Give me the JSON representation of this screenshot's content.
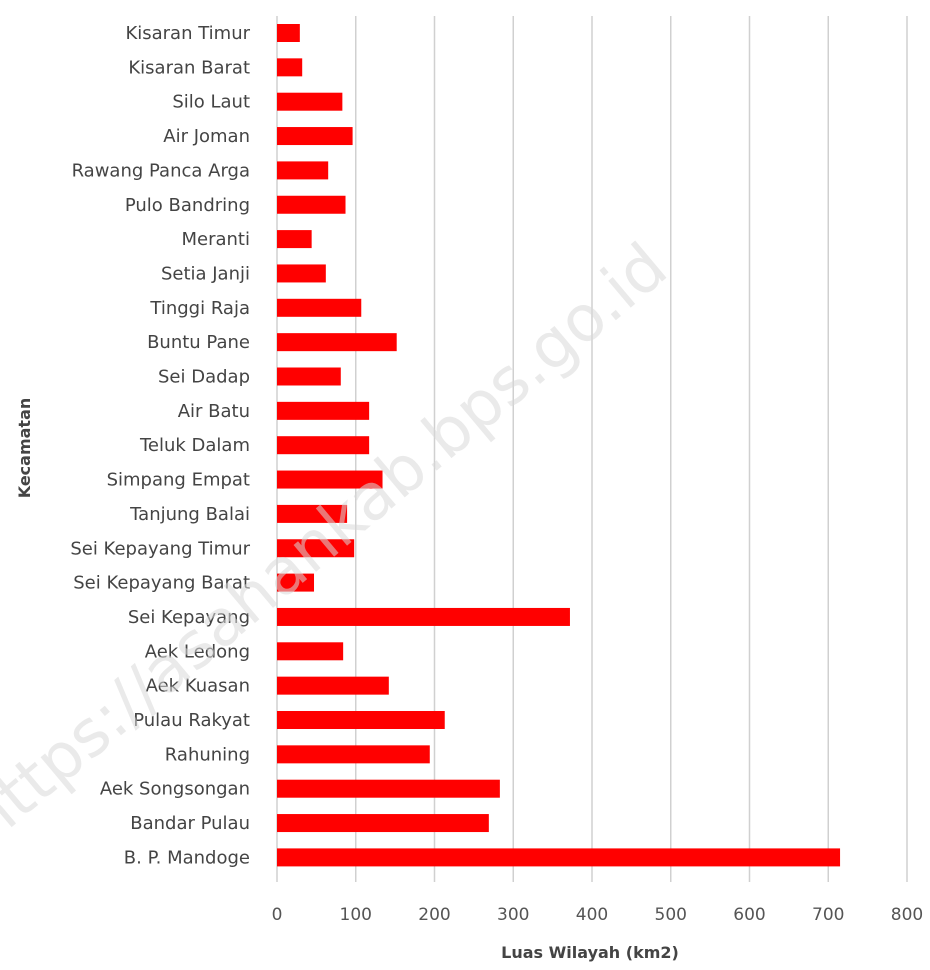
{
  "chart_data": {
    "type": "bar",
    "orientation": "horizontal",
    "categories": [
      "Kisaran Timur",
      "Kisaran Barat",
      "Silo Laut",
      "Air Joman",
      "Rawang Panca Arga",
      "Pulo Bandring",
      "Meranti",
      "Setia Janji",
      "Tinggi Raja",
      "Buntu Pane",
      "Sei Dadap",
      "Air Batu",
      "Teluk Dalam",
      "Simpang Empat",
      "Tanjung Balai",
      "Sei Kepayang Timur",
      "Sei Kepayang Barat",
      "Sei Kepayang",
      "Aek Ledong",
      "Aek Kuasan",
      "Pulau Rakyat",
      "Rahuning",
      "Aek Songsongan",
      "Bandar Pulau",
      "B. P. Mandoge"
    ],
    "values": [
      29,
      32,
      83,
      96,
      65,
      87,
      44,
      62,
      107,
      152,
      81,
      117,
      117,
      134,
      89,
      98,
      47,
      372,
      84,
      142,
      213,
      194,
      283,
      269,
      715
    ],
    "xlabel": "Luas Wilayah (km2)",
    "ylabel": "Kecamatan",
    "xlim": [
      0,
      800
    ],
    "xticks": [
      "0",
      "100",
      "200",
      "300",
      "400",
      "500",
      "600",
      "700",
      "800"
    ],
    "grid": true,
    "bar_color": "#ff0000",
    "grid_color": "#d0d0d0",
    "watermark": "https://asahankab.bps.go.id"
  }
}
